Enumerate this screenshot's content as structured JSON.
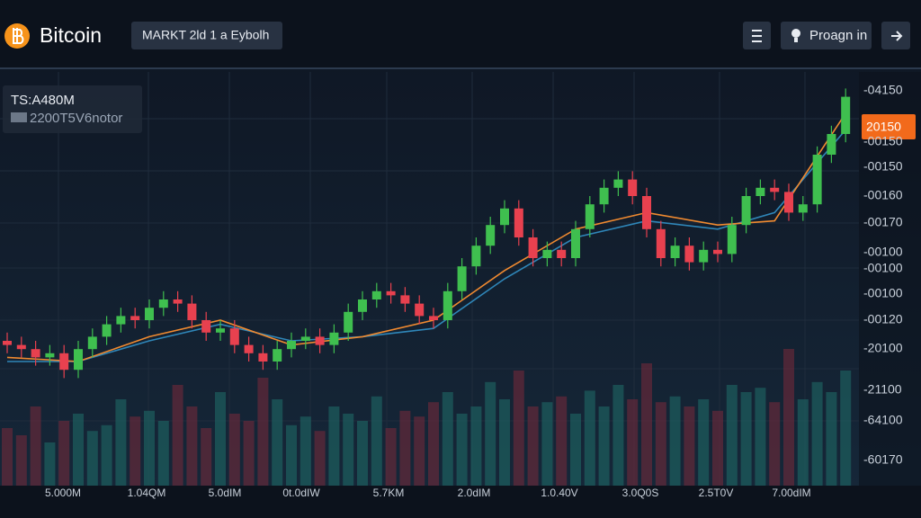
{
  "header": {
    "logo": "Bitcoin",
    "market": "MARKT 2ld 1 a Eybolh",
    "button": "Proagn in"
  },
  "info": {
    "line1": "TS:A480M",
    "line2": "2200T5V6notor"
  },
  "price_tag": "20150",
  "price_axis": [
    "-04150",
    "-00150",
    "-00150",
    "-00160",
    "-00170",
    "-00100",
    "-00100",
    "-00100",
    "-00120",
    "-20100",
    "-21100",
    "-64100",
    "-60170"
  ],
  "time_axis": [
    "5.000M",
    "1.04QM",
    "5.0dIM",
    "0t.0dIW",
    "5.7KM",
    "2.0dIM",
    "1.0.40V",
    "3.0Q0S",
    "2.5T0V",
    "7.00dIM"
  ],
  "chart_data": {
    "type": "candlestick",
    "ylim": [
      0,
      100
    ],
    "volume_lim": [
      0,
      100
    ],
    "up_color": "#3fbf4f",
    "down_color": "#e8414f",
    "ma_fast_color": "#f08a30",
    "ma_slow_color": "#2f86b8",
    "open": [
      35,
      34,
      33,
      31,
      32,
      28,
      33,
      36,
      39,
      41,
      40,
      43,
      45,
      44,
      40,
      37,
      38,
      34,
      32,
      30,
      33,
      35,
      36,
      34,
      37,
      42,
      45,
      47,
      46,
      44,
      41,
      40,
      47,
      53,
      58,
      63,
      67,
      60,
      55,
      57,
      55,
      62,
      68,
      72,
      74,
      70,
      62,
      55,
      58,
      54,
      57,
      56,
      63,
      70,
      72,
      71,
      66,
      68,
      80,
      85
    ],
    "high": [
      37,
      36,
      35,
      34,
      34,
      35,
      38,
      41,
      43,
      43,
      45,
      47,
      47,
      46,
      42,
      40,
      40,
      36,
      34,
      35,
      37,
      38,
      38,
      39,
      44,
      47,
      49,
      49,
      48,
      46,
      43,
      49,
      55,
      60,
      65,
      69,
      69,
      62,
      59,
      59,
      64,
      70,
      74,
      76,
      76,
      72,
      64,
      60,
      60,
      59,
      59,
      65,
      72,
      74,
      74,
      73,
      70,
      82,
      87,
      96
    ],
    "low": [
      32,
      31,
      29,
      29,
      26,
      26,
      31,
      34,
      37,
      38,
      38,
      41,
      42,
      38,
      35,
      35,
      32,
      30,
      28,
      28,
      31,
      33,
      32,
      32,
      35,
      40,
      43,
      44,
      42,
      39,
      38,
      38,
      45,
      51,
      56,
      61,
      58,
      53,
      53,
      53,
      53,
      60,
      66,
      70,
      68,
      60,
      53,
      53,
      52,
      52,
      54,
      54,
      61,
      68,
      69,
      64,
      64,
      66,
      78,
      83
    ],
    "close": [
      34,
      33,
      31,
      32,
      28,
      33,
      36,
      39,
      41,
      40,
      43,
      45,
      44,
      40,
      37,
      38,
      34,
      32,
      30,
      33,
      35,
      36,
      34,
      37,
      42,
      45,
      47,
      46,
      44,
      41,
      40,
      47,
      53,
      58,
      63,
      67,
      60,
      55,
      57,
      55,
      62,
      68,
      72,
      74,
      70,
      62,
      55,
      58,
      54,
      57,
      56,
      63,
      70,
      72,
      71,
      66,
      68,
      80,
      85,
      94
    ],
    "volume": [
      40,
      35,
      55,
      30,
      45,
      50,
      38,
      42,
      60,
      48,
      52,
      45,
      70,
      55,
      40,
      65,
      50,
      45,
      75,
      60,
      42,
      48,
      38,
      55,
      50,
      45,
      62,
      40,
      52,
      48,
      58,
      65,
      50,
      55,
      72,
      60,
      80,
      55,
      58,
      62,
      50,
      66,
      55,
      70,
      60,
      85,
      58,
      62,
      55,
      60,
      52,
      70,
      65,
      68,
      58,
      95,
      60,
      72,
      65,
      80
    ],
    "ma_index": [
      0,
      5,
      10,
      15,
      20,
      25,
      30,
      35,
      40,
      45,
      50,
      54,
      59
    ],
    "ma_fast": [
      31,
      30,
      36,
      40,
      34,
      36,
      40,
      52,
      62,
      66,
      63,
      64,
      90
    ],
    "ma_slow": [
      30,
      30,
      35,
      39,
      35,
      36,
      38,
      50,
      60,
      64,
      62,
      66,
      86
    ]
  }
}
